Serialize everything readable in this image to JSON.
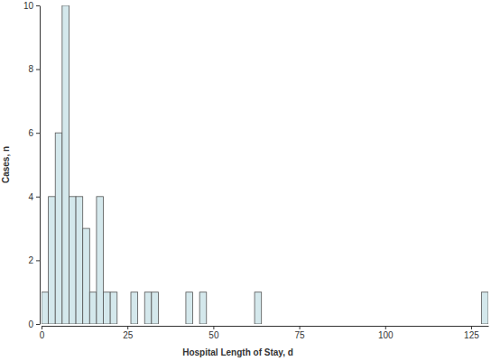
{
  "chart_data": {
    "type": "histogram",
    "x_label": "Hospital Length of Stay, d",
    "y_label": "Cases, n",
    "bins": [
      0,
      2,
      4,
      6,
      8,
      10,
      12,
      14,
      16,
      18,
      20,
      22,
      24,
      26,
      28,
      30,
      32,
      34,
      36,
      38,
      40,
      42,
      44,
      46,
      48,
      50,
      52,
      54,
      56,
      58,
      60,
      62,
      64,
      66,
      68,
      70,
      72,
      74,
      76,
      78,
      80,
      82,
      84,
      86,
      88,
      90,
      92,
      94,
      96,
      98,
      100,
      102,
      104,
      106,
      108,
      110,
      112,
      114,
      116,
      118,
      120,
      122,
      124,
      126,
      128,
      130
    ],
    "values": [
      1,
      4,
      6,
      10,
      4,
      4,
      3,
      1,
      4,
      1,
      1,
      0,
      0,
      1,
      0,
      1,
      1,
      0,
      0,
      0,
      0,
      1,
      0,
      1,
      0,
      0,
      0,
      0,
      0,
      0,
      0,
      1,
      0,
      0,
      0,
      0,
      0,
      0,
      0,
      0,
      0,
      0,
      0,
      0,
      0,
      0,
      0,
      0,
      0,
      0,
      0,
      0,
      0,
      0,
      0,
      0,
      0,
      0,
      0,
      0,
      0,
      0,
      0,
      0,
      1
    ],
    "color": "#d4e8ec",
    "xlim": [
      0,
      130
    ],
    "xticks": [
      0,
      25,
      50,
      75,
      100,
      125
    ],
    "ylim": [
      0,
      10
    ],
    "yticks": [
      0,
      2,
      4,
      6,
      8,
      10
    ],
    "grid": false
  }
}
